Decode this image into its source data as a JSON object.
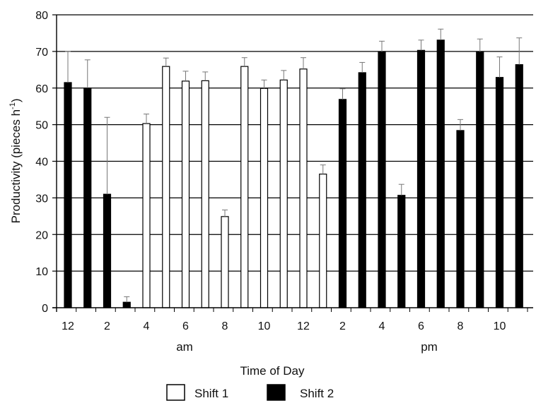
{
  "chart_data": {
    "type": "bar",
    "ylabel": "Productivity (pieces h",
    "ylabel_superscript": "-1",
    "ylabel_close": ")",
    "xlabel": "Time of Day",
    "ylim": [
      0,
      80
    ],
    "yticks": [
      0,
      10,
      20,
      30,
      40,
      50,
      60,
      70,
      80
    ],
    "grid": true,
    "x_tick_labels": [
      "12",
      "2",
      "4",
      "6",
      "8",
      "10",
      "12",
      "2",
      "4",
      "6",
      "8",
      "10"
    ],
    "period_labels": [
      "am",
      "pm"
    ],
    "legend": [
      {
        "name": "Shift 1",
        "color": "#ffffff"
      },
      {
        "name": "Shift 2",
        "color": "#000000"
      }
    ],
    "legend_position": "bottom-center",
    "bars": [
      {
        "slot": 0,
        "series": "Shift 2",
        "value": 61.5,
        "error": 8.5
      },
      {
        "slot": 1,
        "series": "Shift 2",
        "value": 60.0,
        "error": 7.7
      },
      {
        "slot": 2,
        "series": "Shift 2",
        "value": 31.0,
        "error": 21.0
      },
      {
        "slot": 3,
        "series": "Shift 2",
        "value": 1.5,
        "error": 1.5
      },
      {
        "slot": 4,
        "series": "Shift 1",
        "value": 50.3,
        "error": 2.6
      },
      {
        "slot": 5,
        "series": "Shift 1",
        "value": 65.9,
        "error": 2.3
      },
      {
        "slot": 6,
        "series": "Shift 1",
        "value": 61.9,
        "error": 2.7
      },
      {
        "slot": 7,
        "series": "Shift 1",
        "value": 62.0,
        "error": 2.4
      },
      {
        "slot": 8,
        "series": "Shift 1",
        "value": 24.9,
        "error": 1.8
      },
      {
        "slot": 9,
        "series": "Shift 1",
        "value": 65.9,
        "error": 2.4
      },
      {
        "slot": 10,
        "series": "Shift 1",
        "value": 59.9,
        "error": 2.3
      },
      {
        "slot": 11,
        "series": "Shift 1",
        "value": 62.2,
        "error": 2.6
      },
      {
        "slot": 12,
        "series": "Shift 1",
        "value": 65.2,
        "error": 3.1
      },
      {
        "slot": 13,
        "series": "Shift 1",
        "value": 36.5,
        "error": 2.5
      },
      {
        "slot": 14,
        "series": "Shift 2",
        "value": 56.9,
        "error": 2.9
      },
      {
        "slot": 15,
        "series": "Shift 2",
        "value": 64.2,
        "error": 2.8
      },
      {
        "slot": 16,
        "series": "Shift 2",
        "value": 69.9,
        "error": 2.9
      },
      {
        "slot": 17,
        "series": "Shift 2",
        "value": 30.7,
        "error": 3.0
      },
      {
        "slot": 18,
        "series": "Shift 2",
        "value": 70.3,
        "error": 2.8
      },
      {
        "slot": 19,
        "series": "Shift 2",
        "value": 73.1,
        "error": 3.0
      },
      {
        "slot": 20,
        "series": "Shift 2",
        "value": 48.4,
        "error": 3.0
      },
      {
        "slot": 21,
        "series": "Shift 2",
        "value": 69.9,
        "error": 3.5
      },
      {
        "slot": 22,
        "series": "Shift 2",
        "value": 62.9,
        "error": 5.6
      },
      {
        "slot": 23,
        "series": "Shift 2",
        "value": 66.4,
        "error": 7.3
      }
    ]
  }
}
